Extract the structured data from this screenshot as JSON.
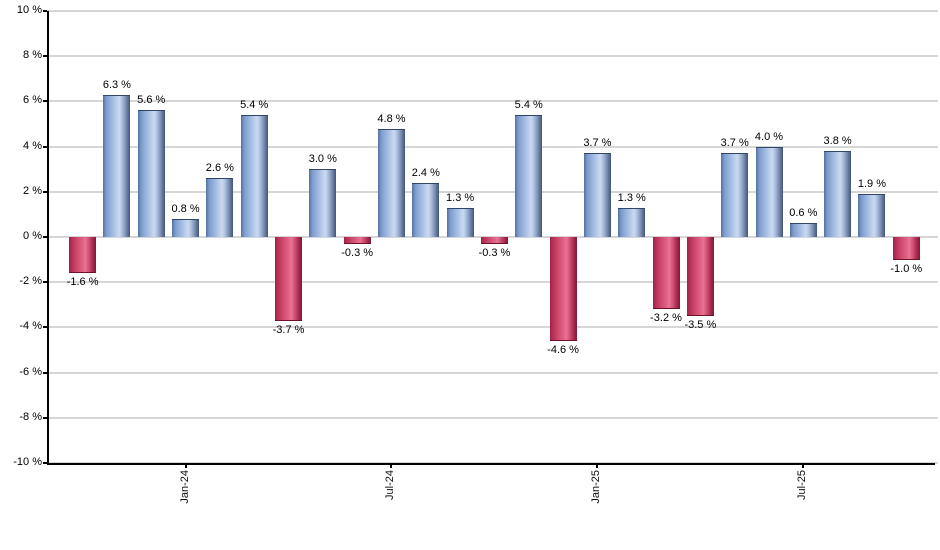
{
  "chart_data": {
    "type": "bar",
    "title": "",
    "unit": "%",
    "values": [
      -1.6,
      6.3,
      5.6,
      0.8,
      2.6,
      5.4,
      -3.7,
      3.0,
      -0.3,
      4.8,
      2.4,
      1.3,
      -0.3,
      5.4,
      -4.6,
      3.7,
      1.3,
      -3.2,
      -3.5,
      3.7,
      4.0,
      0.6,
      3.8,
      1.9,
      -1.0
    ],
    "bar_labels": [
      "-1.6 %",
      "6.3 %",
      "5.6 %",
      "0.8 %",
      "2.6 %",
      "5.4 %",
      "-3.7 %",
      "3.0 %",
      "-0.3 %",
      "4.8 %",
      "2.4 %",
      "1.3 %",
      "-0.3 %",
      "5.4 %",
      "-4.6 %",
      "3.7 %",
      "1.3 %",
      "-3.2 %",
      "-3.5 %",
      "3.7 %",
      "4.0 %",
      "0.6 %",
      "3.8 %",
      "1.9 %",
      "-1.0 %"
    ],
    "y_tick_values": [
      10,
      8,
      6,
      4,
      2,
      0,
      -2,
      -4,
      -6,
      -8,
      -10
    ],
    "y_tick_labels": [
      "10 %",
      "8 %",
      "6 %",
      "4 %",
      "2 %",
      "0 %",
      "-2 %",
      "-4 %",
      "-6 %",
      "-8 %",
      "-10 %"
    ],
    "x_tick_labels": [
      {
        "label": "Jan-24",
        "bar_index": 3
      },
      {
        "label": "Jul-24",
        "bar_index": 9
      },
      {
        "label": "Jan-25",
        "bar_index": 15
      },
      {
        "label": "Jul-25",
        "bar_index": 21
      }
    ],
    "ylim": [
      -10,
      10
    ],
    "grid": true,
    "legend": "none",
    "positive_color": "#98b3de",
    "negative_color": "#ce4a6e",
    "gridline_color": "#d6d6d6",
    "axis_color": "#000000"
  }
}
